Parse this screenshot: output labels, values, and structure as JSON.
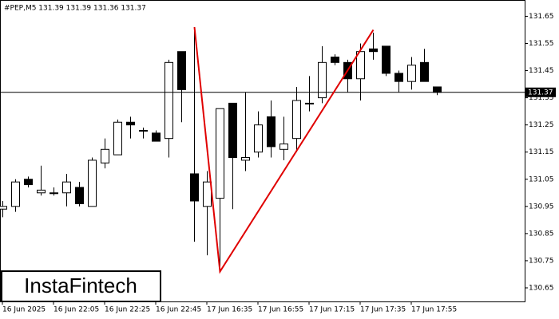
{
  "chart_data": {
    "type": "candlestick",
    "title": "#PEP,M5  131.39 131.39 131.36 131.37",
    "categories": [
      "16 Jun 2025",
      null,
      null,
      null,
      "16 Jun 22:05",
      null,
      null,
      null,
      "16 Jun 22:25",
      null,
      null,
      null,
      "16 Jun 22:45",
      null,
      null,
      null,
      "17 Jun 16:35",
      null,
      null,
      null,
      "17 Jun 16:55",
      null,
      null,
      null,
      "17 Jun 17:15",
      null,
      null,
      null,
      "17 Jun 17:35",
      null,
      null,
      null,
      "17 Jun 17:55",
      null,
      null
    ],
    "open": [
      130.94,
      130.95,
      131.05,
      131.0,
      131.0,
      131.0,
      131.02,
      130.95,
      131.11,
      131.14,
      131.26,
      131.23,
      131.22,
      131.2,
      131.52,
      131.07,
      130.95,
      130.98,
      131.33,
      131.12,
      131.15,
      131.28,
      131.16,
      131.2,
      131.33,
      131.35,
      131.5,
      131.48,
      131.42,
      131.53,
      131.54,
      131.44,
      131.41,
      131.48,
      131.39
    ],
    "high": [
      130.97,
      131.05,
      131.06,
      131.1,
      131.02,
      131.07,
      131.04,
      131.13,
      131.2,
      131.27,
      131.28,
      131.24,
      131.23,
      131.49,
      131.52,
      131.61,
      131.08,
      131.31,
      131.33,
      131.37,
      131.3,
      131.34,
      131.28,
      131.39,
      131.43,
      131.54,
      131.51,
      131.49,
      131.55,
      131.59,
      131.54,
      131.45,
      131.5,
      131.53,
      131.39
    ],
    "low": [
      130.91,
      130.93,
      131.02,
      130.99,
      130.99,
      130.95,
      130.95,
      130.95,
      131.09,
      131.14,
      131.2,
      131.2,
      131.19,
      131.13,
      131.26,
      130.82,
      130.77,
      130.73,
      130.94,
      131.08,
      131.13,
      131.13,
      131.12,
      131.15,
      131.3,
      131.33,
      131.47,
      131.37,
      131.34,
      131.49,
      131.43,
      131.37,
      131.38,
      131.41,
      131.36
    ],
    "close": [
      130.95,
      131.04,
      131.03,
      131.01,
      131.0,
      131.04,
      130.96,
      131.12,
      131.16,
      131.26,
      131.25,
      131.23,
      131.19,
      131.48,
      131.38,
      130.97,
      131.04,
      131.31,
      131.13,
      131.13,
      131.25,
      131.17,
      131.18,
      131.34,
      131.33,
      131.48,
      131.48,
      131.42,
      131.52,
      131.52,
      131.44,
      131.41,
      131.47,
      131.41,
      131.37
    ],
    "bull_color": "#ffffff",
    "bear_color": "#000000",
    "current_price": {
      "value": 131.37,
      "label": "131.37"
    },
    "pattern": {
      "color": "#e00000",
      "x": [
        15,
        17,
        29
      ],
      "values": [
        131.61,
        130.71,
        131.6
      ]
    },
    "ylim": [
      130.6,
      131.71
    ],
    "yticks": [
      131.65,
      131.55,
      131.45,
      131.35,
      131.25,
      131.15,
      131.05,
      130.95,
      130.85,
      130.75,
      130.65
    ],
    "logo": "InstaFintech"
  }
}
